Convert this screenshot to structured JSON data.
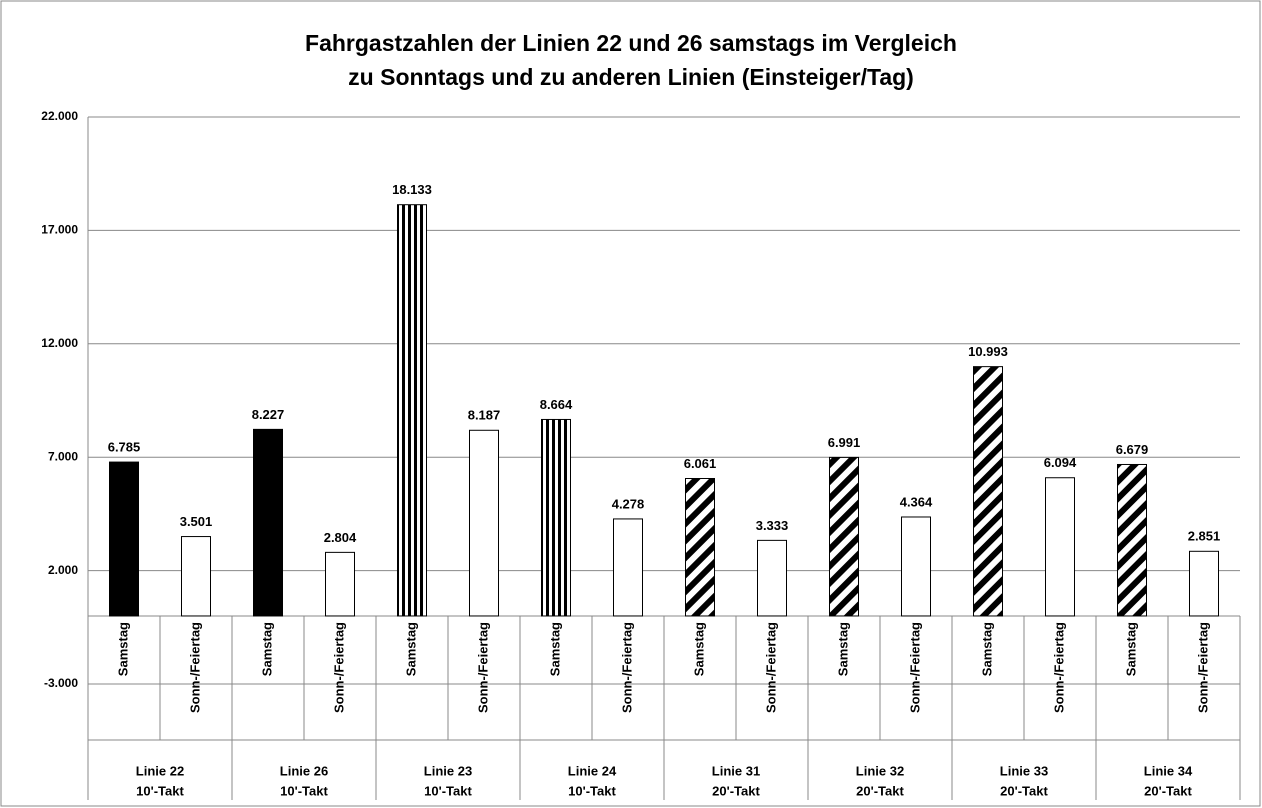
{
  "chart_data": {
    "type": "bar",
    "title": [
      "Fahrgastzahlen der Linien 22 und 26 samstags im Vergleich",
      "zu Sonntags und zu anderen Linien (Einsteiger/Tag)"
    ],
    "categories": [
      "Samstag",
      "Sonn-/Feiertag",
      "Samstag",
      "Sonn-/Feiertag",
      "Samstag",
      "Sonn-/Feiertag",
      "Samstag",
      "Sonn-/Feiertag",
      "Samstag",
      "Sonn-/Feiertag",
      "Samstag",
      "Sonn-/Feiertag",
      "Samstag",
      "Sonn-/Feiertag",
      "Samstag",
      "Sonn-/Feiertag"
    ],
    "groups": [
      [
        "Linie 22",
        "10'-Takt"
      ],
      [
        "Linie 26",
        "10'-Takt"
      ],
      [
        "Linie 23",
        "10'-Takt"
      ],
      [
        "Linie 24",
        "10'-Takt"
      ],
      [
        "Linie 31",
        "20'-Takt"
      ],
      [
        "Linie 32",
        "20'-Takt"
      ],
      [
        "Linie 33",
        "20'-Takt"
      ],
      [
        "Linie 34",
        "20'-Takt"
      ]
    ],
    "values": [
      6785,
      3501,
      8227,
      2804,
      18133,
      8187,
      8664,
      4278,
      6061,
      3333,
      6991,
      4364,
      10993,
      6094,
      6679,
      2851
    ],
    "value_labels": [
      "6.785",
      "3.501",
      "8.227",
      "2.804",
      "18.133",
      "8.187",
      "8.664",
      "4.278",
      "6.061",
      "3.333",
      "6.991",
      "4.364",
      "10.993",
      "6.094",
      "6.679",
      "2.851"
    ],
    "patterns": [
      "solid",
      "white",
      "solid",
      "white",
      "vertical",
      "white",
      "vertical",
      "white",
      "diagonal",
      "white",
      "diagonal",
      "white",
      "diagonal",
      "white",
      "diagonal",
      "white"
    ],
    "ylim": [
      -3000,
      22000
    ],
    "yticks": [
      {
        "value": -3000,
        "label": "-3.000"
      },
      {
        "value": 2000,
        "label": "2.000"
      },
      {
        "value": 7000,
        "label": "7.000"
      },
      {
        "value": 12000,
        "label": "12.000"
      },
      {
        "value": 17000,
        "label": "17.000"
      },
      {
        "value": 22000,
        "label": "22.000"
      }
    ],
    "grid": true
  }
}
